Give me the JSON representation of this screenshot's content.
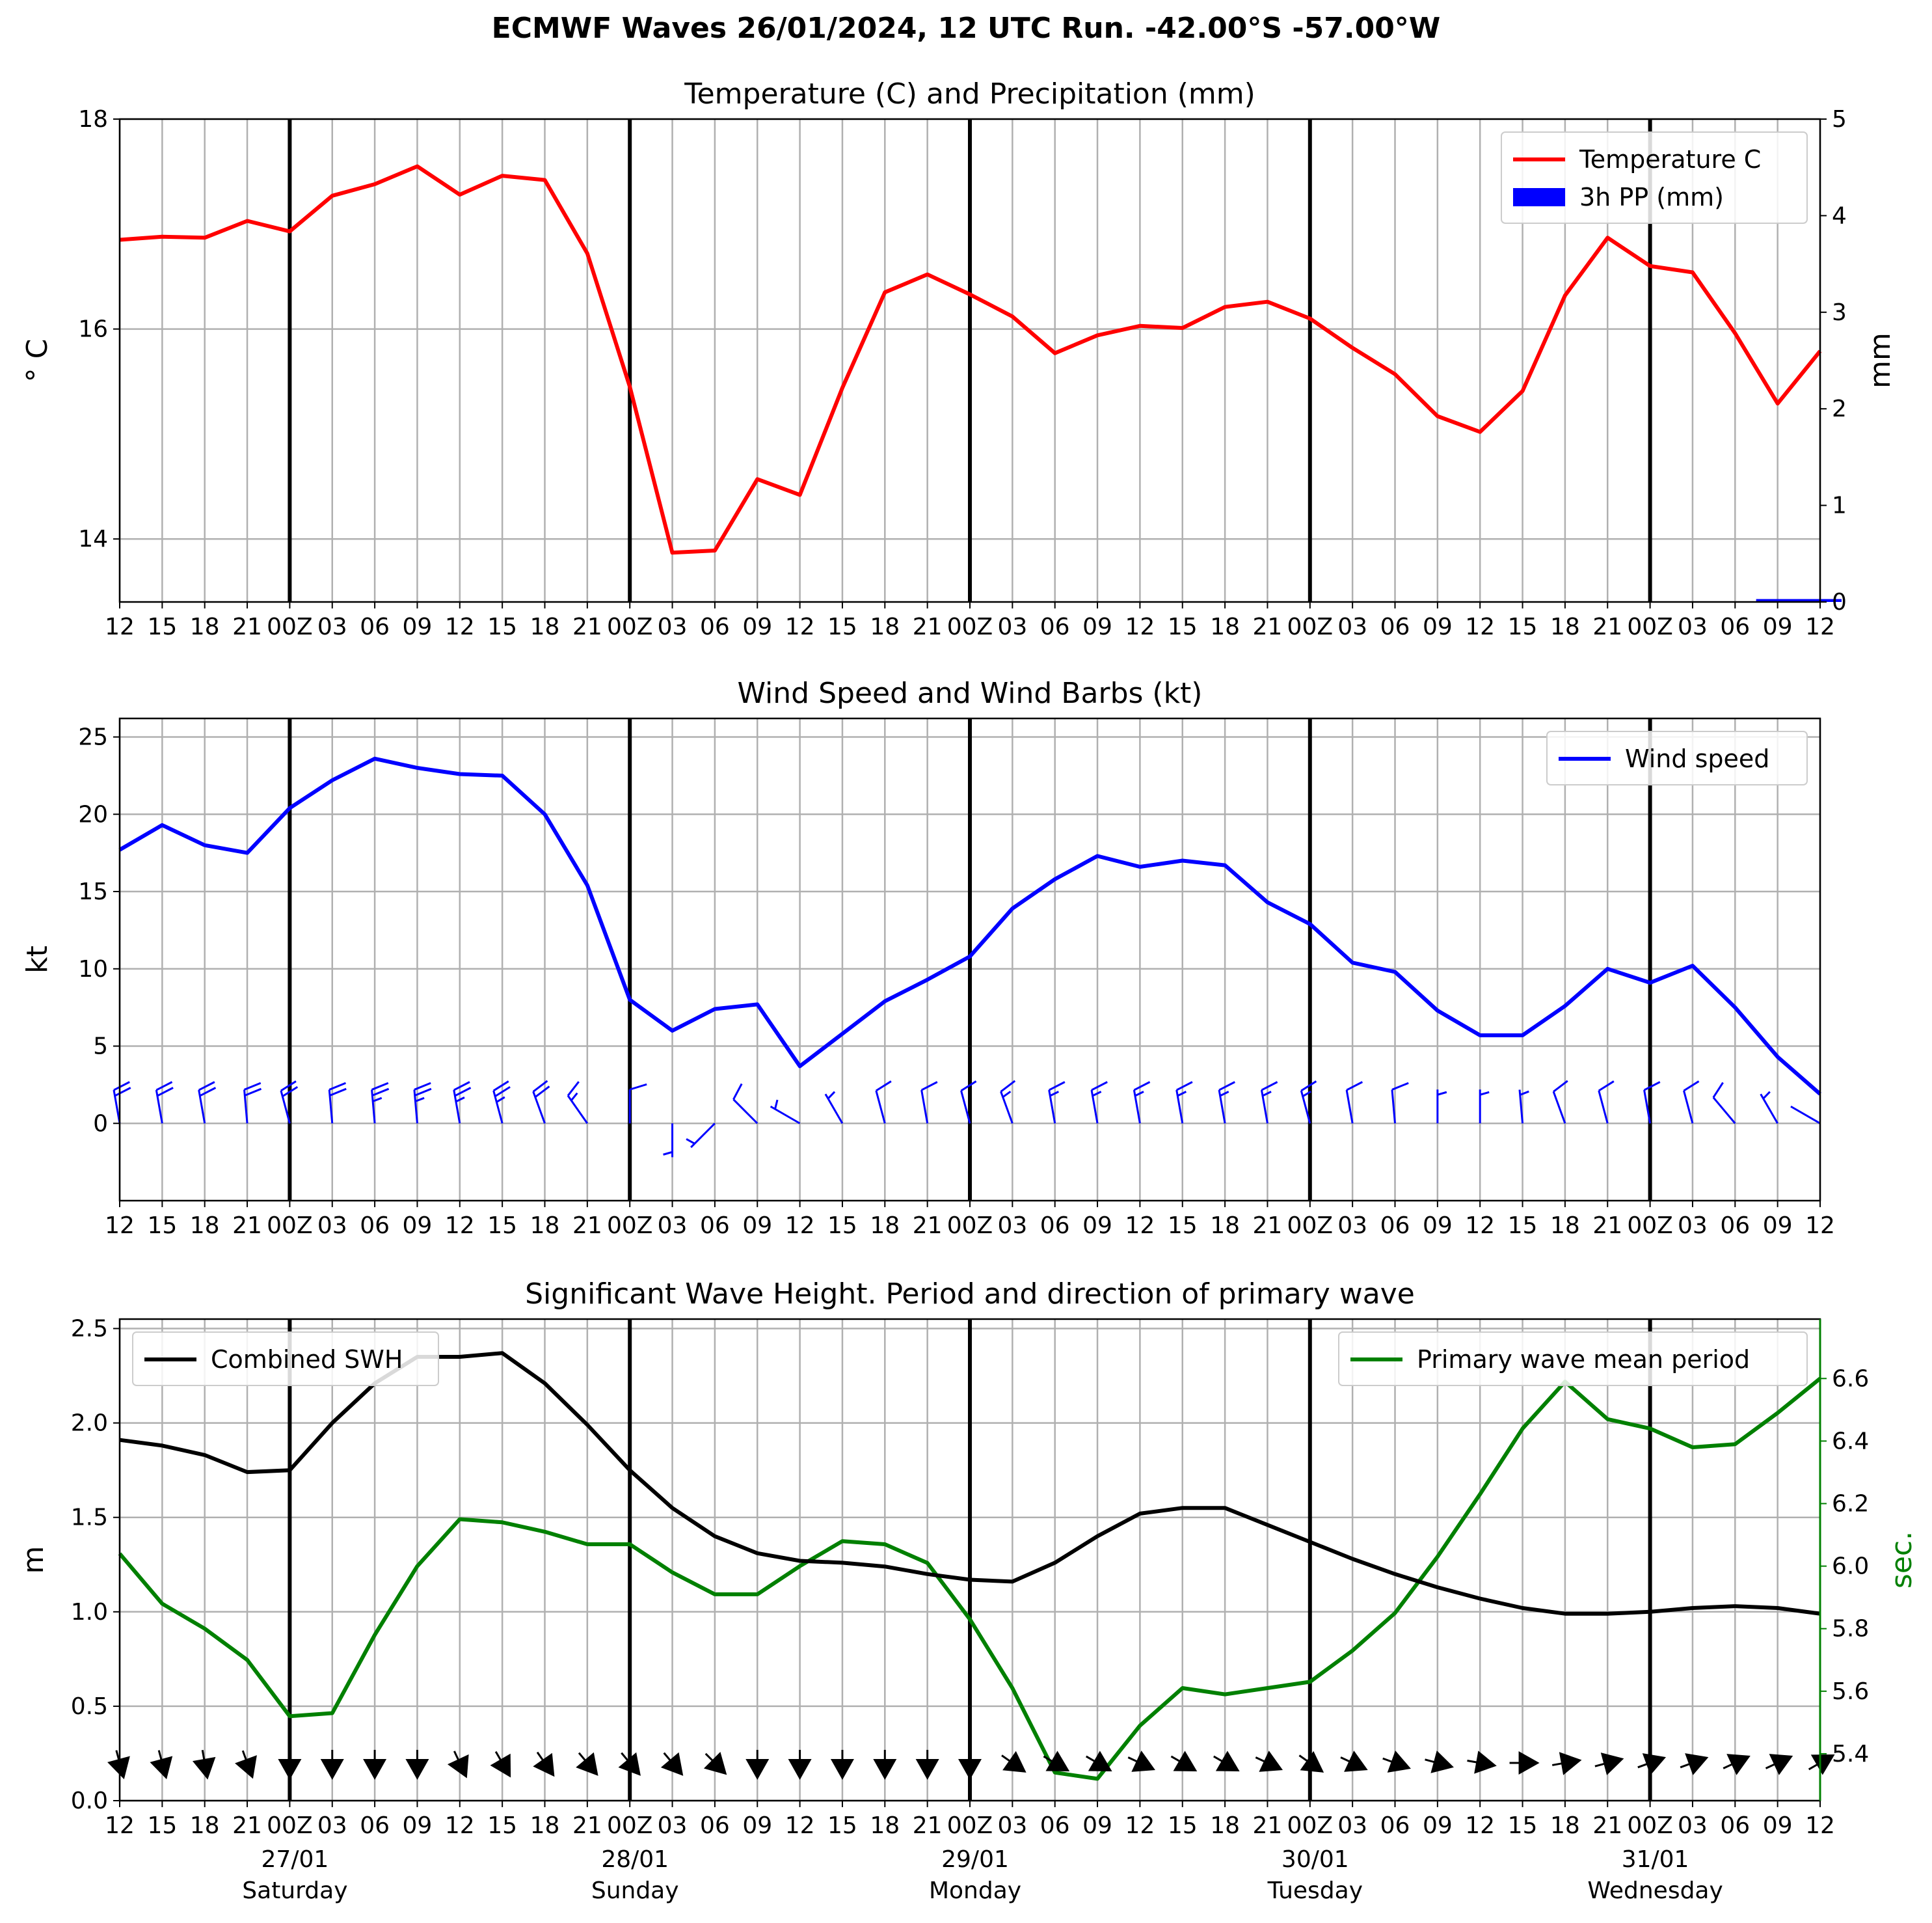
{
  "main_title": "ECMWF Waves 26/01/2024, 12 UTC Run. -42.00°S -57.00°W",
  "x_ticks": [
    "12",
    "15",
    "18",
    "21",
    "00Z",
    "03",
    "06",
    "09",
    "12",
    "15",
    "18",
    "21",
    "00Z",
    "03",
    "06",
    "09",
    "12",
    "15",
    "18",
    "21",
    "00Z",
    "03",
    "06",
    "09",
    "12",
    "15",
    "18",
    "21",
    "00Z",
    "03",
    "06",
    "09",
    "12",
    "15",
    "18",
    "21",
    "00Z",
    "03",
    "06",
    "09",
    "12"
  ],
  "day_labels": [
    {
      "date": "27/01",
      "day": "Saturday"
    },
    {
      "date": "28/01",
      "day": "Sunday"
    },
    {
      "date": "29/01",
      "day": "Monday"
    },
    {
      "date": "30/01",
      "day": "Tuesday"
    },
    {
      "date": "31/01",
      "day": "Wednesday"
    }
  ],
  "colors": {
    "temperature": "#ff0000",
    "precip": "#0000ff",
    "wind": "#0000ff",
    "swh": "#000000",
    "period": "#008000",
    "grid": "#b0b0b0"
  },
  "chart_data": [
    {
      "type": "line",
      "title": "Temperature (C) and Precipitation (mm)",
      "ylabel": "° C",
      "ylabel_right": "mm",
      "ylim": [
        13.4,
        18.0
      ],
      "y_ticks": [
        14,
        16,
        18
      ],
      "ylim_right": [
        0,
        5
      ],
      "y_ticks_right": [
        0,
        1,
        2,
        3,
        4,
        5
      ],
      "legend_position": "top-right",
      "series": [
        {
          "name": "Temperature C",
          "axis": "left",
          "values": [
            16.85,
            16.88,
            16.87,
            17.03,
            16.93,
            17.27,
            17.38,
            17.55,
            17.28,
            17.46,
            17.42,
            16.72,
            15.45,
            13.87,
            13.89,
            14.57,
            14.42,
            15.44,
            16.35,
            16.52,
            16.33,
            16.12,
            15.77,
            15.94,
            16.03,
            16.01,
            16.21,
            16.26,
            16.1,
            15.82,
            15.57,
            15.17,
            15.02,
            15.41,
            16.32,
            16.87,
            16.6,
            16.54,
            15.96,
            15.29,
            15.79
          ]
        },
        {
          "name": "3h PP (mm)",
          "axis": "right",
          "type": "bar",
          "values": [
            0,
            0,
            0,
            0,
            0,
            0,
            0,
            0,
            0,
            0,
            0,
            0,
            0,
            0,
            0,
            0,
            0,
            0,
            0,
            0,
            0,
            0,
            0,
            0,
            0,
            0,
            0,
            0,
            0,
            0,
            0,
            0,
            0,
            0,
            0,
            0,
            0,
            0,
            0,
            0.03,
            0.03
          ]
        }
      ]
    },
    {
      "type": "line",
      "title": "Wind Speed and Wind Barbs (kt)",
      "ylabel": "kt",
      "ylim": [
        -5,
        26.2
      ],
      "y_ticks": [
        0,
        5,
        10,
        15,
        20,
        25
      ],
      "legend_position": "top-right",
      "series": [
        {
          "name": "Wind speed",
          "values": [
            17.7,
            19.3,
            18.0,
            17.5,
            20.4,
            22.2,
            23.6,
            23.0,
            22.6,
            22.5,
            20.0,
            15.4,
            8.0,
            6.0,
            7.4,
            7.7,
            3.7,
            5.8,
            7.9,
            9.3,
            10.8,
            13.9,
            15.8,
            17.3,
            16.6,
            17.0,
            16.7,
            14.3,
            12.9,
            10.4,
            9.8,
            7.3,
            5.7,
            5.7,
            7.6,
            10.0,
            9.1,
            10.2,
            7.5,
            4.3,
            1.9
          ]
        }
      ],
      "barb_directions_deg": [
        350,
        350,
        350,
        355,
        345,
        355,
        355,
        355,
        350,
        345,
        340,
        325,
        0,
        180,
        225,
        315,
        300,
        330,
        345,
        350,
        345,
        340,
        350,
        350,
        350,
        350,
        350,
        350,
        345,
        350,
        355,
        0,
        0,
        355,
        340,
        345,
        350,
        345,
        320,
        330,
        300
      ]
    },
    {
      "type": "line",
      "title": "Significant Wave Height. Period and direction of primary wave",
      "ylabel": "m",
      "ylabel_right": "sec.",
      "ylim": [
        0.0,
        2.55
      ],
      "y_ticks": [
        0.0,
        0.5,
        1.0,
        1.5,
        2.0,
        2.5
      ],
      "ylim_right": [
        5.25,
        6.79
      ],
      "y_ticks_right": [
        5.4,
        5.6,
        5.8,
        6.0,
        6.2,
        6.4,
        6.6
      ],
      "series": [
        {
          "name": "Combined SWH",
          "axis": "left",
          "legend_position": "top-left",
          "values": [
            1.91,
            1.88,
            1.83,
            1.74,
            1.75,
            2.0,
            2.21,
            2.35,
            2.35,
            2.37,
            2.21,
            1.99,
            1.75,
            1.55,
            1.4,
            1.31,
            1.27,
            1.26,
            1.24,
            1.2,
            1.17,
            1.16,
            1.26,
            1.4,
            1.52,
            1.55,
            1.55,
            1.46,
            1.37,
            1.28,
            1.2,
            1.13,
            1.07,
            1.02,
            0.99,
            0.99,
            1.0,
            1.02,
            1.03,
            1.02,
            0.99
          ]
        },
        {
          "name": "Primary wave mean period",
          "axis": "right",
          "legend_position": "top-right",
          "values": [
            6.04,
            5.88,
            5.8,
            5.7,
            5.52,
            5.53,
            5.78,
            6.0,
            6.15,
            6.14,
            6.11,
            6.07,
            6.07,
            5.98,
            5.91,
            5.91,
            6.0,
            6.08,
            6.07,
            6.01,
            5.83,
            5.61,
            5.34,
            5.32,
            5.49,
            5.61,
            5.59,
            5.61,
            5.63,
            5.73,
            5.85,
            6.03,
            6.23,
            6.44,
            6.59,
            6.47,
            6.44,
            6.38,
            6.39,
            6.49,
            6.6
          ]
        }
      ],
      "wave_directions_deg": [
        345,
        345,
        350,
        340,
        0,
        0,
        0,
        0,
        335,
        330,
        325,
        320,
        320,
        320,
        315,
        0,
        0,
        0,
        0,
        0,
        0,
        305,
        300,
        300,
        295,
        300,
        300,
        295,
        305,
        295,
        290,
        285,
        280,
        270,
        260,
        255,
        250,
        250,
        245,
        245,
        240
      ]
    }
  ]
}
